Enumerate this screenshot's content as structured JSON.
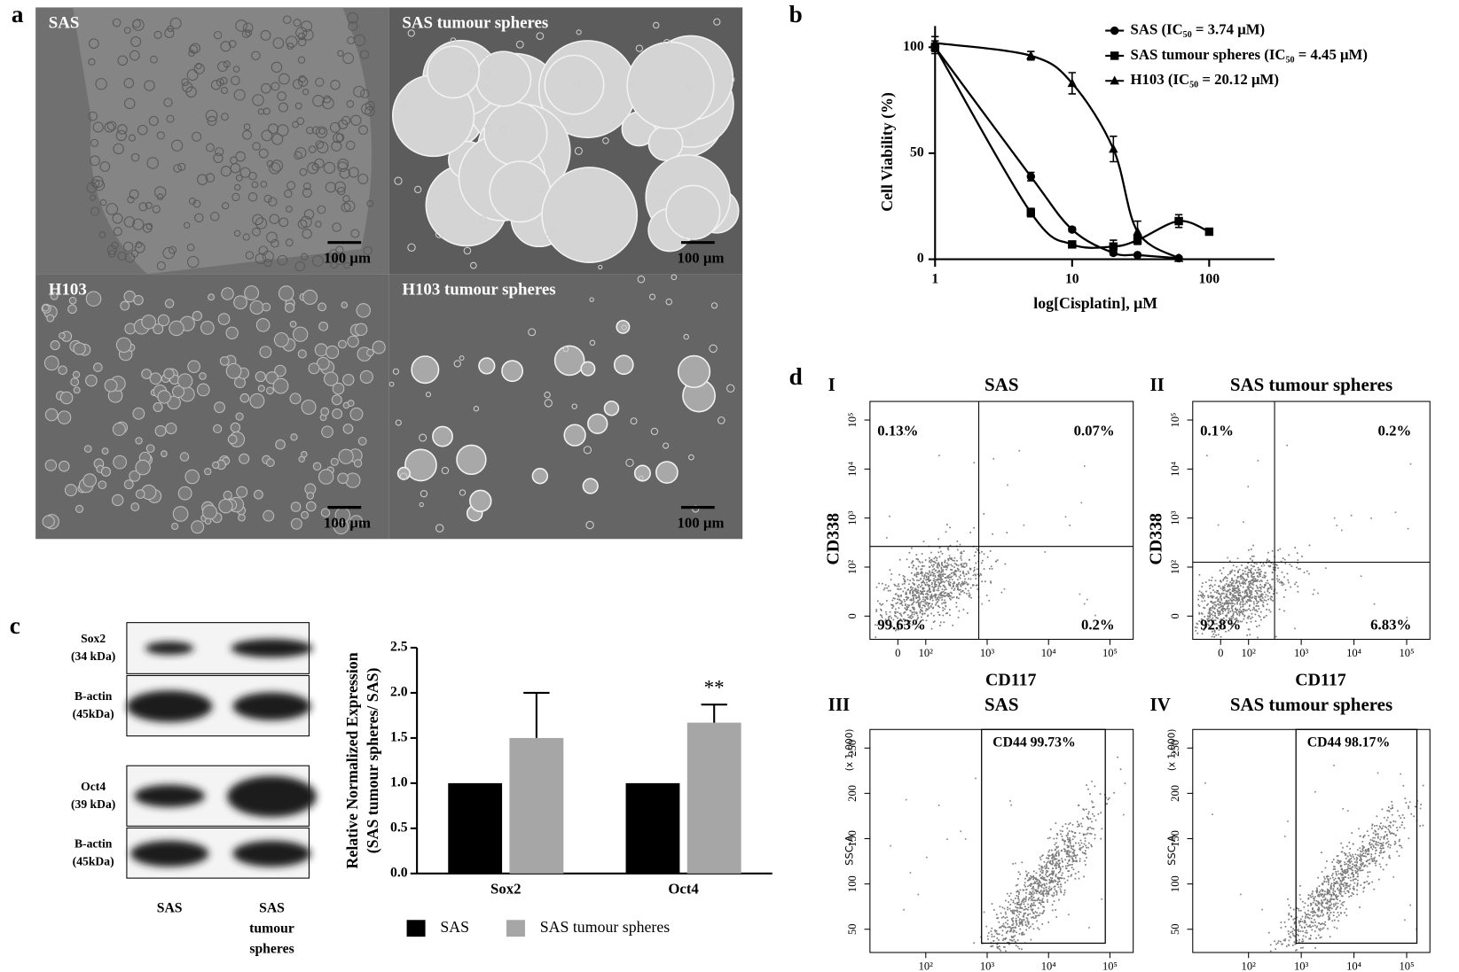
{
  "panel_labels": [
    "a",
    "b",
    "c",
    "d"
  ],
  "micrographs": [
    {
      "label": "SAS",
      "scale_bar": "100 µm"
    },
    {
      "label": "SAS tumour spheres",
      "scale_bar": "100 µm"
    },
    {
      "label": "H103",
      "scale_bar": "100 µm"
    },
    {
      "label": "H103 tumour spheres",
      "scale_bar": "100 µm"
    }
  ],
  "blot": {
    "rows": [
      {
        "name": "Sox2",
        "size": "(34 kDa)"
      },
      {
        "name": "B-actin",
        "size": "(45kDa)"
      },
      {
        "name": "Oct4",
        "size": "(39 kDa)"
      },
      {
        "name": "B-actin",
        "size": "(45kDa)"
      }
    ],
    "lanes": [
      [
        "SAS"
      ],
      [
        "SAS",
        "tumour",
        "spheres"
      ]
    ]
  },
  "flow_plots": [
    {
      "roman": "I",
      "title": "SAS",
      "quadrants": {
        "ul": "0.13%",
        "ur": "0.07%",
        "ll": "99.63%",
        "lr": "0.2%"
      },
      "xlabel": "CD117",
      "ylabel": "CD338",
      "xticks": [
        "0",
        "10²",
        "10³",
        "10⁴",
        "10⁵"
      ],
      "yticks": [
        "0",
        "10²",
        "10³",
        "10⁴",
        "10⁵"
      ]
    },
    {
      "roman": "II",
      "title": "SAS tumour spheres",
      "quadrants": {
        "ul": "0.1%",
        "ur": "0.2%",
        "ll": "92.8%",
        "lr": "6.83%"
      },
      "xlabel": "CD117",
      "ylabel": "CD338",
      "xticks": [
        "0",
        "10²",
        "10³",
        "10⁴",
        "10⁵"
      ],
      "yticks": [
        "0",
        "10²",
        "10³",
        "10⁴",
        "10⁵"
      ]
    },
    {
      "roman": "III",
      "title": "SAS",
      "gate": "CD44 99.73%",
      "ylabel": "SSC-A",
      "yunit": "(x 1,000)",
      "xticks": [
        "10²",
        "10³",
        "10⁴",
        "10⁵"
      ],
      "yticks": [
        "50",
        "100",
        "150",
        "200",
        "250"
      ]
    },
    {
      "roman": "IV",
      "title": "SAS tumour spheres",
      "gate": "CD44 98.17%",
      "ylabel": "SSC-A",
      "yunit": "(x 1,000)",
      "xticks": [
        "10²",
        "10³",
        "10⁴",
        "10⁵"
      ],
      "yticks": [
        "50",
        "100",
        "150",
        "200",
        "250"
      ]
    }
  ],
  "chart_data": [
    {
      "type": "line",
      "xlabel": "log[Cisplatin], μM",
      "ylabel": "Cell Viability (%)",
      "xscale": "log",
      "xlim": [
        1,
        300
      ],
      "xticks": [
        1,
        10,
        100
      ],
      "ylim": [
        0,
        110
      ],
      "yticks": [
        0,
        50,
        100
      ],
      "legend": "upper right",
      "series": [
        {
          "name": "SAS (IC₅₀ = 3.74 μM)",
          "color": "#000000",
          "marker": "circle",
          "x": [
            1,
            5,
            10,
            20,
            30,
            60
          ],
          "values": [
            100,
            39,
            14,
            3,
            2,
            0.5
          ],
          "errors": [
            3,
            2,
            1,
            1,
            0.5,
            0.5
          ]
        },
        {
          "name": "SAS tumour spheres (IC₅₀ = 4.45 μM)",
          "color": "#000000",
          "marker": "square",
          "x": [
            1,
            5,
            10,
            20,
            30,
            60,
            100
          ],
          "values": [
            100,
            22,
            7,
            6,
            9,
            18,
            13
          ],
          "errors": [
            2,
            2,
            1,
            3,
            2,
            3,
            0
          ]
        },
        {
          "name": "H103 (IC₅₀ = 20.12 μM)",
          "color": "#000000",
          "marker": "triangle",
          "x": [
            1,
            5,
            10,
            20,
            30,
            60
          ],
          "values": [
            102,
            96,
            83,
            52,
            13,
            0.5
          ],
          "errors": [
            3,
            2,
            5,
            6,
            5,
            0.5
          ]
        }
      ]
    },
    {
      "type": "bar",
      "ylabel": [
        "Relative Normalized Expression",
        "(SAS tumour spheres/ SAS)"
      ],
      "categories": [
        "Sox2",
        "Oct4"
      ],
      "ylim": [
        0,
        2.5
      ],
      "yticks": [
        {
          "value": 0,
          "label": "0.0"
        },
        0.5,
        {
          "value": 1,
          "label": "1.0"
        },
        1.5,
        {
          "value": 2,
          "label": "2.0"
        },
        2.5
      ],
      "significance": [
        null,
        "**"
      ],
      "legend": "below",
      "series": [
        {
          "name": "SAS",
          "color": "#000000",
          "values": [
            1,
            1
          ]
        },
        {
          "name": "SAS tumour spheres",
          "color": "#a6a6a6",
          "values": [
            1.5,
            1.67
          ],
          "errors": [
            0.5,
            0.2
          ]
        }
      ]
    }
  ]
}
